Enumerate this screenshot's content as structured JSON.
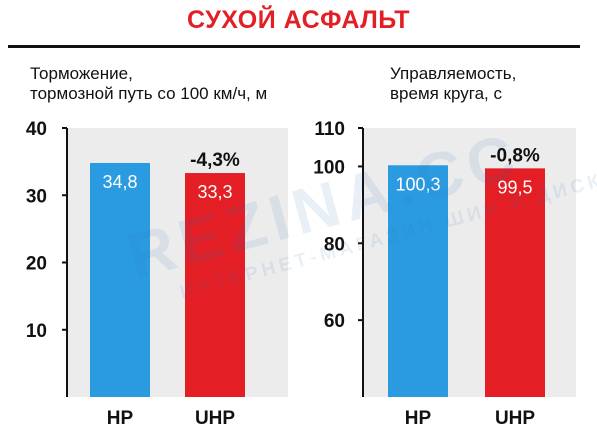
{
  "title": "СУХОЙ АСФАЛЬТ",
  "watermark": {
    "main": "REZINA.CC",
    "sub": "ИНТЕРНЕТ-МАГАЗИН ШИН И ДИСКОВ"
  },
  "colors": {
    "title": "#e31e24",
    "hp": "#2a9be0",
    "uhp": "#e31e24",
    "panel": "#ececec",
    "axis": "#111111"
  },
  "chart_data": [
    {
      "type": "bar",
      "title_line1": "Торможение,",
      "title_line2": "тормозной путь со 100 км/ч, м",
      "categories": [
        "HP",
        "UHP"
      ],
      "values": [
        34.8,
        33.3
      ],
      "value_labels": [
        "34,8",
        "33,3"
      ],
      "yticks": [
        10,
        20,
        30,
        40
      ],
      "ylim": [
        0,
        40
      ],
      "annotation": "-4,3%",
      "grid": false
    },
    {
      "type": "bar",
      "title_line1": "Управляемость,",
      "title_line2": "время круга, с",
      "categories": [
        "HP",
        "UHP"
      ],
      "values": [
        100.3,
        99.5
      ],
      "value_labels": [
        "100,3",
        "99,5"
      ],
      "yticks": [
        60,
        80,
        100,
        110
      ],
      "ylim": [
        40,
        110
      ],
      "annotation": "-0,8%",
      "grid": false
    }
  ]
}
